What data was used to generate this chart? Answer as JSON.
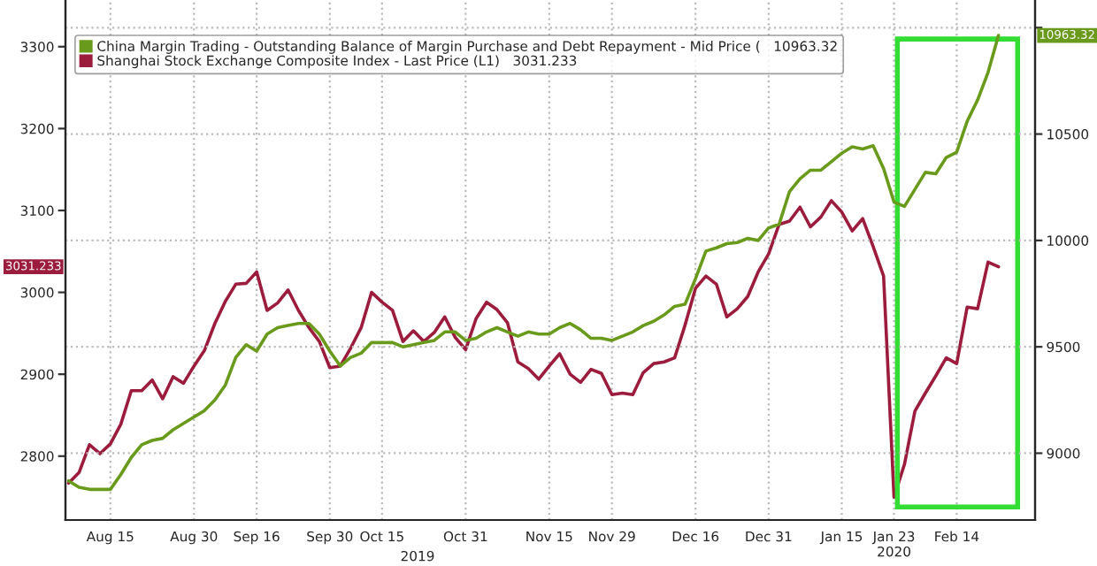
{
  "chart_data": {
    "type": "line",
    "categories": [
      null,
      null,
      null,
      null,
      "Aug 15",
      null,
      null,
      null,
      null,
      null,
      null,
      null,
      "Aug 30",
      null,
      null,
      null,
      null,
      null,
      "Sep 16",
      null,
      null,
      null,
      null,
      null,
      null,
      "Sep 30",
      null,
      null,
      null,
      null,
      "Oct 15",
      null,
      null,
      null,
      null,
      null,
      null,
      null,
      "Oct 31",
      null,
      null,
      null,
      null,
      null,
      null,
      null,
      "Nov 15",
      null,
      null,
      null,
      null,
      null,
      "Nov 29",
      null,
      null,
      null,
      null,
      null,
      null,
      null,
      "Dec 16",
      null,
      null,
      null,
      null,
      null,
      null,
      "Dec 31",
      null,
      null,
      null,
      null,
      null,
      null,
      "Jan 15",
      null,
      null,
      null,
      null,
      "Jan 23\n2020",
      null,
      null,
      null,
      null,
      null,
      "Feb 14",
      null,
      null,
      null,
      null
    ],
    "series": [
      {
        "name": "China Margin Trading - Outstanding Balance of Margin Purchase and Debt Repayment - Mid Price (   10963.32",
        "color": "#6a9a1c",
        "axis": "y2",
        "values": [
          8870,
          8840,
          8830,
          8830,
          8830,
          8900,
          8980,
          9040,
          9060,
          9070,
          9110,
          9140,
          9170,
          9200,
          9250,
          9320,
          9450,
          9510,
          9480,
          9560,
          9590,
          9600,
          9610,
          9610,
          9560,
          9480,
          9410,
          9450,
          9470,
          9520,
          9520,
          9520,
          9500,
          9510,
          9520,
          9530,
          9570,
          9570,
          9530,
          9540,
          9570,
          9590,
          9570,
          9550,
          9570,
          9560,
          9560,
          9590,
          9610,
          9580,
          9540,
          9540,
          9530,
          9550,
          9570,
          9600,
          9620,
          9650,
          9690,
          9700,
          9820,
          9950,
          9965,
          9985,
          9990,
          10010,
          10000,
          10059,
          10076,
          10230,
          10290,
          10330,
          10330,
          10370,
          10410,
          10440,
          10430,
          10445,
          10338,
          10180,
          10160,
          10240,
          10320,
          10313,
          10390,
          10415,
          10560,
          10660,
          10790,
          10963.32
        ]
      },
      {
        "name": "Shanghai Stock Exchange Composite Index - Last Price (L1)   3031.233",
        "color": "#9b1c3c",
        "values": [
          2767,
          2780,
          2814,
          2803,
          2815,
          2839,
          2880,
          2880,
          2893,
          2870,
          2897,
          2889,
          2910,
          2929,
          2962,
          2989,
          3010,
          3011,
          3025,
          2978,
          2987,
          3003,
          2978,
          2957,
          2940,
          2908,
          2910,
          2932,
          2957,
          3000,
          2988,
          2978,
          2940,
          2953,
          2940,
          2951,
          2970,
          2945,
          2930,
          2968,
          2988,
          2979,
          2963,
          2915,
          2907,
          2894,
          2910,
          2925,
          2900,
          2890,
          2906,
          2901,
          2875,
          2877,
          2875,
          2902,
          2913,
          2915,
          2920,
          2960,
          3005,
          3020,
          3010,
          2970,
          2980,
          2995,
          3025,
          3047,
          3083,
          3087,
          3104,
          3080,
          3092,
          3112,
          3098,
          3075,
          3090,
          3056,
          3020,
          2750,
          2790,
          2855,
          2877,
          2898,
          2920,
          2913,
          2982,
          2980,
          3037,
          3031.233
        ]
      }
    ],
    "ylim": [
      2722,
      3357
    ],
    "yticks": [
      2800,
      2900,
      3000,
      3100,
      3200,
      3300
    ],
    "y2lim": [
      8686,
      11130
    ],
    "y2ticks": [
      9000,
      9500,
      10000,
      10500,
      {
        "value": 11000,
        "label": null
      }
    ],
    "annotations": [
      "10963.32",
      "3031.233",
      "2019"
    ],
    "grid": true,
    "legend": "top left"
  }
}
